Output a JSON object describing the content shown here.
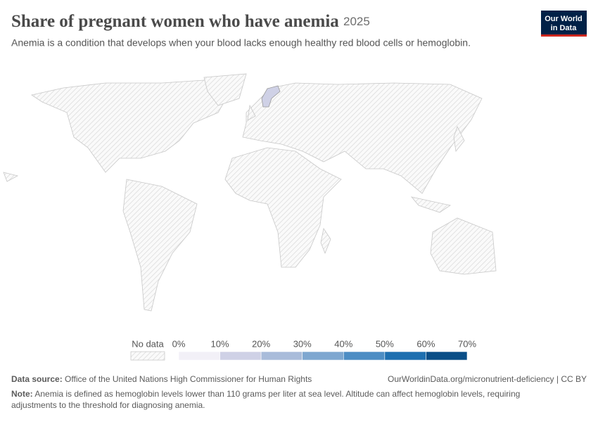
{
  "chart_data": {
    "type": "map",
    "title": "Share of pregnant women who have anemia",
    "year": "2025",
    "subtitle": "Anemia is a condition that develops when your blood lacks enough healthy red blood cells or hemoglobin.",
    "logo": [
      "Our World",
      "in Data"
    ],
    "no_data_label": "No data",
    "xlim": [
      0,
      70
    ],
    "xticks": [
      {
        "value": 0,
        "label": "0%"
      },
      {
        "value": 10,
        "label": "10%"
      },
      {
        "value": 20,
        "label": "20%"
      },
      {
        "value": 30,
        "label": "30%"
      },
      {
        "value": 40,
        "label": "40%"
      },
      {
        "value": 50,
        "label": "50%"
      },
      {
        "value": 60,
        "label": "60%"
      },
      {
        "value": 70,
        "label": "70%"
      }
    ],
    "colors": [
      "#f2f0f7",
      "#cfd1e6",
      "#a9bcda",
      "#7ea7d0",
      "#4d8dc4",
      "#1e6fb0",
      "#0a4e87"
    ],
    "values": [
      15
    ],
    "source_label": "Data source:",
    "source": "Office of the United Nations High Commissioner for Human Rights",
    "url": "OurWorldinData.org/micronutrient-deficiency | CC BY",
    "note_label": "Note:",
    "note": [
      "Anemia is defined as hemoglobin levels lower than 110 grams per liter at sea level. Altitude can affect hemoglobin levels, requiring",
      "adjustments to the threshold for diagnosing anemia."
    ]
  }
}
